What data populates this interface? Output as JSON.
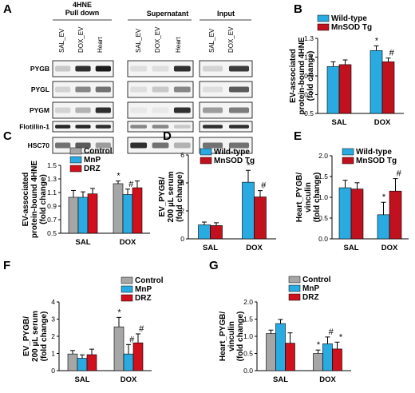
{
  "colors": {
    "wildtype": "#29abe2",
    "mnsod": "#c1101e",
    "control": "#a6a6a6",
    "mnp": "#29abe2",
    "drz": "#d0101c",
    "blot_bg": "#f4f4f4",
    "band": "#1a1a1a"
  },
  "panel_A": {
    "letter": "A",
    "group_pulldown": "4HNE\nPull down",
    "group_supernatant": "Supernatant",
    "group_input": "Input",
    "lanes_pulldown": [
      "SAL_EV",
      "DOX_EV",
      "Heart"
    ],
    "lanes_supernatant": [
      "SAL_EV",
      "DOX_EV",
      "Heart"
    ],
    "lanes_input": [
      "SAL_EV",
      "DOX_EV"
    ],
    "rows": [
      "PYGB",
      "PYGL",
      "PYGM",
      "Flotillin-1",
      "HSC70"
    ]
  },
  "chart_data": [
    {
      "panel": "B",
      "type": "bar",
      "categories": [
        "SAL",
        "DOX"
      ],
      "ylabel": "EV-associated\nprotein-bound 4HNE\n(fold change)",
      "ylim": [
        0.5,
        1.3
      ],
      "yticks": [
        "0.5",
        "0.7",
        "0.9",
        "1.1",
        "1.3"
      ],
      "series": [
        {
          "name": "Wild-type",
          "values": [
            1.0,
            1.17
          ],
          "errors": [
            0.05,
            0.05
          ],
          "sig": [
            "",
            "*"
          ]
        },
        {
          "name": "MnSOD Tg",
          "values": [
            1.02,
            1.05
          ],
          "errors": [
            0.05,
            0.04
          ],
          "sig": [
            "",
            "#"
          ]
        }
      ],
      "legend": "top-right"
    },
    {
      "panel": "C",
      "type": "bar",
      "categories": [
        "SAL",
        "DOX"
      ],
      "ylabel": "EV-associated\nprotein-bound 4HNE\n(fold change)",
      "ylim": [
        0.5,
        1.5
      ],
      "yticks": [
        "0.5",
        "0.7",
        "0.9",
        "1.1",
        "1.3",
        "1.5"
      ],
      "series": [
        {
          "name": "Control",
          "values": [
            1.03,
            1.23
          ],
          "errors": [
            0.1,
            0.04
          ],
          "sig": [
            "",
            "*"
          ]
        },
        {
          "name": "MnP",
          "values": [
            1.03,
            1.07
          ],
          "errors": [
            0.08,
            0.08
          ],
          "sig": [
            "",
            "#"
          ]
        },
        {
          "name": "DRZ",
          "values": [
            1.08,
            1.17
          ],
          "errors": [
            0.08,
            0.1
          ],
          "sig": [
            "",
            ""
          ]
        }
      ],
      "legend": "top-left"
    },
    {
      "panel": "D",
      "type": "bar",
      "categories": [
        "SAL",
        "DOX"
      ],
      "ylabel": "EV_PYGB/\n200 µL serum\n(fold change)",
      "ylim": [
        0,
        6
      ],
      "yticks": [
        "0",
        "2",
        "4",
        "6"
      ],
      "series": [
        {
          "name": "Wild-type",
          "values": [
            1.0,
            4.05
          ],
          "errors": [
            0.2,
            0.85
          ],
          "sig": [
            "",
            "*"
          ]
        },
        {
          "name": "MnSOD Tg",
          "values": [
            0.95,
            3.0
          ],
          "errors": [
            0.2,
            0.45
          ],
          "sig": [
            "",
            "#"
          ]
        }
      ],
      "legend": "top-right"
    },
    {
      "panel": "E",
      "type": "bar",
      "categories": [
        "SAL",
        "DOX"
      ],
      "ylabel": "Heart_PYGB/\nvinculin\n(fold change)",
      "ylim": [
        0,
        2
      ],
      "yticks": [
        "0.0",
        "0.5",
        "1.0",
        "1.5",
        "2.0"
      ],
      "series": [
        {
          "name": "Wild-type",
          "values": [
            1.23,
            0.58
          ],
          "errors": [
            0.18,
            0.3
          ],
          "sig": [
            "",
            "*"
          ]
        },
        {
          "name": "MnSOD Tg",
          "values": [
            1.2,
            1.15
          ],
          "errors": [
            0.15,
            0.3
          ],
          "sig": [
            "",
            "#"
          ]
        }
      ],
      "legend": "top-right"
    },
    {
      "panel": "F",
      "type": "bar",
      "categories": [
        "SAL",
        "DOX"
      ],
      "ylabel": "EV_PYGB/\n200 µL serum\n(fold change)",
      "ylim": [
        0,
        4
      ],
      "yticks": [
        "0",
        "1",
        "2",
        "3",
        "4"
      ],
      "series": [
        {
          "name": "Control",
          "values": [
            0.97,
            2.55
          ],
          "errors": [
            0.2,
            0.55
          ],
          "sig": [
            "",
            "*"
          ]
        },
        {
          "name": "MnP",
          "values": [
            0.72,
            0.97
          ],
          "errors": [
            0.2,
            0.55
          ],
          "sig": [
            "",
            "#"
          ]
        },
        {
          "name": "DRZ",
          "values": [
            0.93,
            1.62
          ],
          "errors": [
            0.32,
            0.52
          ],
          "sig": [
            "",
            "#"
          ]
        }
      ],
      "legend": "top-right"
    },
    {
      "panel": "G",
      "type": "bar",
      "categories": [
        "SAL",
        "DOX"
      ],
      "ylabel": "Heart_PYGB/\nvinculin\n(fold change)",
      "ylim": [
        0,
        2
      ],
      "yticks": [
        "0.0",
        "0.5",
        "1.0",
        "1.5",
        "2.0"
      ],
      "series": [
        {
          "name": "Control",
          "values": [
            1.08,
            0.5
          ],
          "errors": [
            0.1,
            0.1
          ],
          "sig": [
            "",
            "*"
          ]
        },
        {
          "name": "MnP",
          "values": [
            1.37,
            0.78
          ],
          "errors": [
            0.12,
            0.2
          ],
          "sig": [
            "",
            "#"
          ]
        },
        {
          "name": "DRZ",
          "values": [
            0.8,
            0.63
          ],
          "errors": [
            0.3,
            0.2
          ],
          "sig": [
            "",
            "*"
          ]
        }
      ],
      "legend": "top-right"
    }
  ]
}
